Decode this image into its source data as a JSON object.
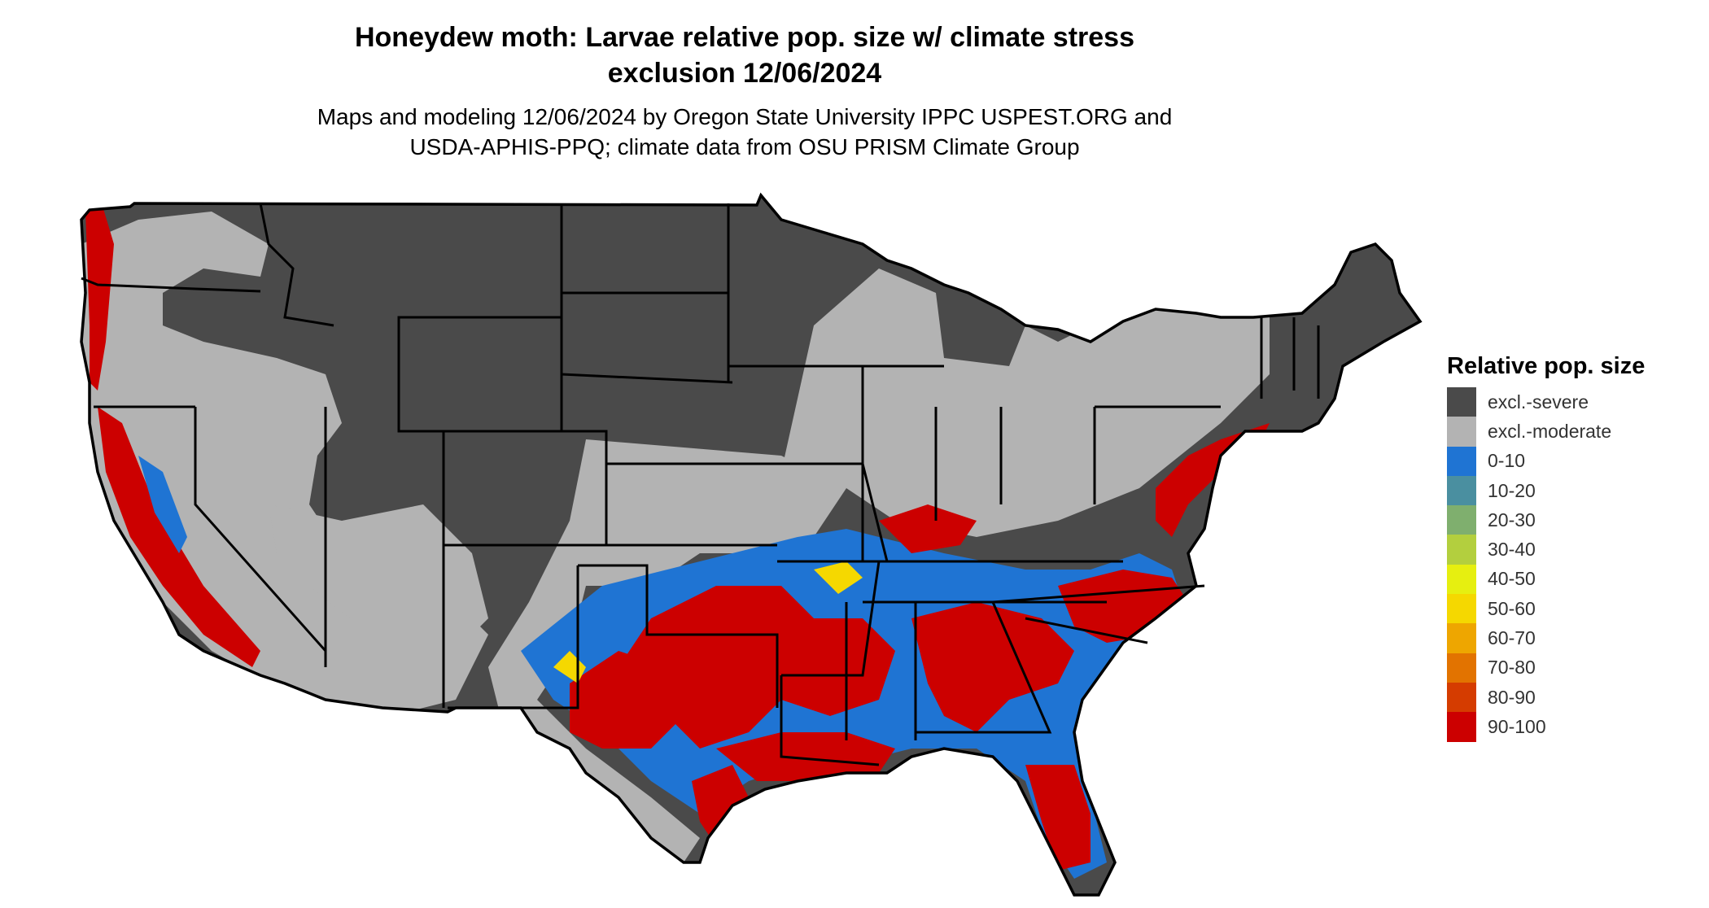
{
  "title": {
    "line1": "Honeydew moth: Larvae relative pop. size w/ climate stress",
    "line2": "exclusion 12/06/2024"
  },
  "subtitle": {
    "line1": "Maps and modeling 12/06/2024 by Oregon State University IPPC USPEST.ORG and",
    "line2": "USDA-APHIS-PPQ; climate data from OSU PRISM Climate Group"
  },
  "legend": {
    "title": "Relative pop. size",
    "items": [
      {
        "label": "excl.-severe",
        "color": "#4a4a4a"
      },
      {
        "label": "excl.-moderate",
        "color": "#b3b3b3"
      },
      {
        "label": "0-10",
        "color": "#1f74d3"
      },
      {
        "label": "10-20",
        "color": "#4a8fa0"
      },
      {
        "label": "20-30",
        "color": "#7faf6e"
      },
      {
        "label": "30-40",
        "color": "#b3cf3e"
      },
      {
        "label": "40-50",
        "color": "#e6ef10"
      },
      {
        "label": "50-60",
        "color": "#f5d800"
      },
      {
        "label": "60-70",
        "color": "#eea600"
      },
      {
        "label": "70-80",
        "color": "#e27300"
      },
      {
        "label": "80-90",
        "color": "#d53c00"
      },
      {
        "label": "90-100",
        "color": "#cc0000"
      }
    ]
  },
  "map": {
    "region": "contiguous-united-states",
    "colors": {
      "severe": "#4a4a4a",
      "moderate": "#b3b3b3",
      "low": "#1f74d3",
      "high": "#cc0000",
      "mid": "#f5d800",
      "border": "#000000"
    }
  }
}
